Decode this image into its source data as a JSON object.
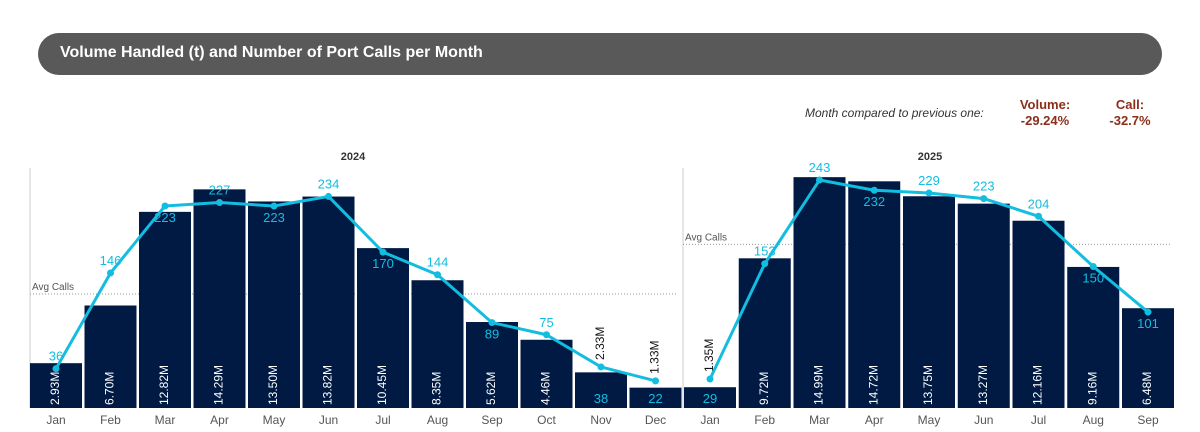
{
  "header": {
    "title": "Volume Handled (t) and Number of Port Calls per Month"
  },
  "comparison": {
    "label": "Month compared to previous one:",
    "volume_label": "Volume:",
    "volume_value": "-29.24%",
    "call_label": "Call:",
    "call_value": "-32.7%"
  },
  "colors": {
    "bar": "#001a43",
    "line": "#12bde0",
    "kpi": "#8b2e1a"
  },
  "chart_data": [
    {
      "type": "bar+line",
      "title": "2024",
      "avg_label": "Avg Calls",
      "categories": [
        "Jan",
        "Feb",
        "Mar",
        "Apr",
        "May",
        "Jun",
        "Jul",
        "Aug",
        "Sep",
        "Oct",
        "Nov",
        "Dec"
      ],
      "series": [
        {
          "name": "Volume",
          "type": "bar",
          "values": [
            2.93,
            6.7,
            12.82,
            14.29,
            13.5,
            13.82,
            10.45,
            8.35,
            5.62,
            4.46,
            2.33,
            1.33
          ],
          "labels": [
            "2.93M",
            "6.70M",
            "12.82M",
            "14.29M",
            "13.50M",
            "13.82M",
            "10.45M",
            "8.35M",
            "5.62M",
            "4.46M",
            "2.33M",
            "1.33M"
          ]
        },
        {
          "name": "Calls",
          "type": "line",
          "values": [
            36,
            146,
            223,
            227,
            223,
            234,
            170,
            144,
            89,
            75,
            38,
            22
          ]
        }
      ]
    },
    {
      "type": "bar+line",
      "title": "2025",
      "avg_label": "Avg Calls",
      "categories": [
        "Jan",
        "Feb",
        "Mar",
        "Apr",
        "May",
        "Jun",
        "Jul",
        "Aug",
        "Sep"
      ],
      "series": [
        {
          "name": "Volume",
          "type": "bar",
          "values": [
            1.35,
            9.72,
            14.99,
            14.72,
            13.75,
            13.27,
            12.16,
            9.16,
            6.48
          ],
          "labels": [
            "1.35M",
            "9.72M",
            "14.99M",
            "14.72M",
            "13.75M",
            "13.27M",
            "12.16M",
            "9.16M",
            "6.48M"
          ]
        },
        {
          "name": "Calls",
          "type": "line",
          "values": [
            29,
            153,
            243,
            232,
            229,
            223,
            204,
            150,
            101
          ]
        }
      ]
    }
  ]
}
